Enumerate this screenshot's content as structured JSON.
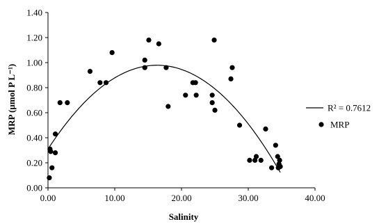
{
  "chart_data": {
    "type": "scatter",
    "xlabel": "Salinity",
    "ylabel": "MRP (µmol P L⁻¹)",
    "xlim": [
      0,
      40
    ],
    "ylim": [
      0,
      1.4
    ],
    "x_ticks": [
      "0.00",
      "10.00",
      "20.00",
      "30.00",
      "40.00"
    ],
    "y_ticks": [
      "0.00",
      "0.20",
      "0.40",
      "0.60",
      "0.80",
      "1.00",
      "1.20",
      "1.40"
    ],
    "grid": false,
    "legend_position": "right",
    "legend": [
      {
        "kind": "line",
        "label": "R² = 0.7612"
      },
      {
        "kind": "marker",
        "label": "MRP"
      }
    ],
    "series": [
      {
        "name": "MRP",
        "color": "#000000",
        "points": [
          [
            0.2,
            0.08
          ],
          [
            0.3,
            0.31
          ],
          [
            0.4,
            0.29
          ],
          [
            0.6,
            0.16
          ],
          [
            1.1,
            0.28
          ],
          [
            1.1,
            0.43
          ],
          [
            1.8,
            0.68
          ],
          [
            2.9,
            0.68
          ],
          [
            6.3,
            0.93
          ],
          [
            7.8,
            0.84
          ],
          [
            8.7,
            0.84
          ],
          [
            9.6,
            1.08
          ],
          [
            14.5,
            1.02
          ],
          [
            14.5,
            0.96
          ],
          [
            15.1,
            1.18
          ],
          [
            16.6,
            1.15
          ],
          [
            17.7,
            0.96
          ],
          [
            18.0,
            0.65
          ],
          [
            20.6,
            0.74
          ],
          [
            21.7,
            0.84
          ],
          [
            22.1,
            0.84
          ],
          [
            22.2,
            0.74
          ],
          [
            24.6,
            0.74
          ],
          [
            24.6,
            0.68
          ],
          [
            24.9,
            1.18
          ],
          [
            25.0,
            0.62
          ],
          [
            27.4,
            0.87
          ],
          [
            27.6,
            0.96
          ],
          [
            28.7,
            0.5
          ],
          [
            30.2,
            0.22
          ],
          [
            31.0,
            0.22
          ],
          [
            31.2,
            0.25
          ],
          [
            31.9,
            0.22
          ],
          [
            32.6,
            0.47
          ],
          [
            33.5,
            0.16
          ],
          [
            34.1,
            0.34
          ],
          [
            34.4,
            0.25
          ],
          [
            34.5,
            0.16
          ],
          [
            34.6,
            0.19
          ],
          [
            34.7,
            0.22
          ],
          [
            34.8,
            0.17
          ]
        ]
      }
    ],
    "trendline": {
      "type": "polynomial",
      "order": 2,
      "coefficients": [
        0.3093,
        0.082,
        -0.00251
      ],
      "x_range": [
        0,
        34.8
      ],
      "color": "#000000"
    }
  }
}
